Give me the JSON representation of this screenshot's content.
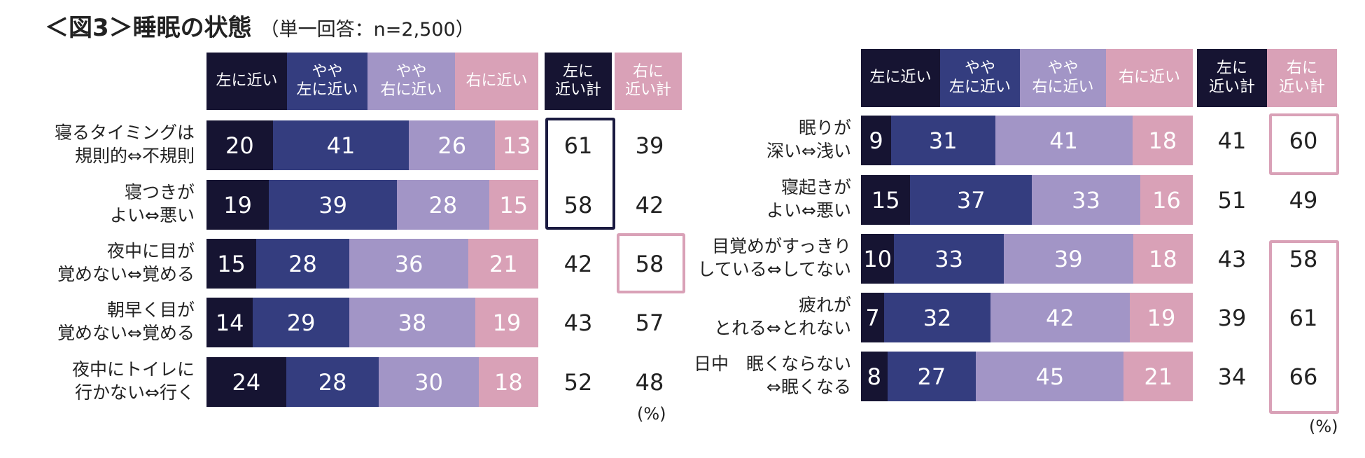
{
  "title": {
    "main": "＜図3＞睡眠の状態",
    "sub": "（単一回答：n=2,500）"
  },
  "colors": {
    "left": "#161432",
    "slight_left": "#343d7f",
    "slight_right": "#a295c6",
    "right": "#d9a1b7",
    "left_total_header": "#161432",
    "right_total_header": "#d9a1b7",
    "highlight_dark": "#1a1a40",
    "highlight_pink": "#d9a1b7"
  },
  "unit_label": "(%)",
  "chart_data": [
    {
      "type": "bar",
      "stacked": true,
      "orientation": "horizontal",
      "headers": {
        "left": "左に近い",
        "slight_left": [
          "やや",
          "左に近い"
        ],
        "slight_right": [
          "やや",
          "右に近い"
        ],
        "right": "右に近い",
        "left_total": [
          "左に",
          "近い計"
        ],
        "right_total": [
          "右に",
          "近い計"
        ]
      },
      "categories": [
        [
          "寝るタイミングは",
          "規則的⇔不規則"
        ],
        [
          "寝つきが",
          "よい⇔悪い"
        ],
        [
          "夜中に目が",
          "覚めない⇔覚める"
        ],
        [
          "朝早く目が",
          "覚めない⇔覚める"
        ],
        [
          "夜中にトイレに",
          "行かない⇔行く"
        ]
      ],
      "series": [
        {
          "name": "左に近い",
          "values": [
            20,
            19,
            15,
            14,
            24
          ]
        },
        {
          "name": "やや左に近い",
          "values": [
            41,
            39,
            28,
            29,
            28
          ]
        },
        {
          "name": "やや右に近い",
          "values": [
            26,
            28,
            36,
            38,
            30
          ]
        },
        {
          "name": "右に近い",
          "values": [
            13,
            15,
            21,
            19,
            18
          ]
        }
      ],
      "left_totals": [
        61,
        58,
        42,
        43,
        52
      ],
      "right_totals": [
        39,
        42,
        58,
        57,
        48
      ],
      "highlight_left_rows": [
        0,
        1
      ],
      "highlight_right_rows": [
        2
      ]
    },
    {
      "type": "bar",
      "stacked": true,
      "orientation": "horizontal",
      "headers": {
        "left": "左に近い",
        "slight_left": [
          "やや",
          "左に近い"
        ],
        "slight_right": [
          "やや",
          "右に近い"
        ],
        "right": "右に近い",
        "left_total": [
          "左に",
          "近い計"
        ],
        "right_total": [
          "右に",
          "近い計"
        ]
      },
      "categories": [
        [
          "眠りが",
          "深い⇔浅い"
        ],
        [
          "寝起きが",
          "よい⇔悪い"
        ],
        [
          "目覚めがすっきり",
          "している⇔してない"
        ],
        [
          "疲れが",
          "とれる⇔とれない"
        ],
        [
          "日中　眠くならない",
          "⇔眠くなる"
        ]
      ],
      "series": [
        {
          "name": "左に近い",
          "values": [
            9,
            15,
            10,
            7,
            8
          ]
        },
        {
          "name": "やや左に近い",
          "values": [
            31,
            37,
            33,
            32,
            27
          ]
        },
        {
          "name": "やや右に近い",
          "values": [
            41,
            33,
            39,
            42,
            45
          ]
        },
        {
          "name": "右に近い",
          "values": [
            18,
            16,
            18,
            19,
            21
          ]
        }
      ],
      "left_totals": [
        41,
        51,
        43,
        39,
        34
      ],
      "right_totals": [
        60,
        49,
        58,
        61,
        66
      ],
      "highlight_left_rows": [],
      "highlight_right_rows": [
        0,
        2,
        3,
        4
      ]
    }
  ]
}
